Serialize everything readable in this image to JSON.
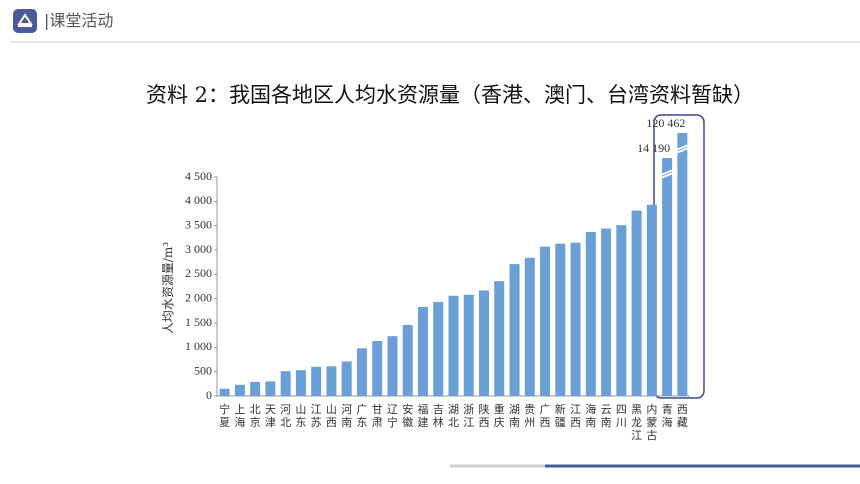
{
  "header": {
    "title": "|课堂活动"
  },
  "chart_data": {
    "type": "bar",
    "title": "资料 2：我国各地区人均水资源量（香港、澳门、台湾资料暂缺）",
    "ylabel": "人均水资源量/m³",
    "categories": [
      "宁夏",
      "上海",
      "北京",
      "天津",
      "河北",
      "山东",
      "江苏",
      "山西",
      "河南",
      "广东",
      "甘肃",
      "辽宁",
      "安徽",
      "福建",
      "吉林",
      "湖北",
      "浙江",
      "陕西",
      "重庆",
      "湖南",
      "贵州",
      "广西",
      "新疆",
      "江西",
      "海南",
      "云南",
      "四川",
      "黑龙江",
      "内蒙古",
      "青海",
      "西藏"
    ],
    "values": [
      150,
      230,
      290,
      300,
      510,
      530,
      600,
      610,
      710,
      980,
      1130,
      1230,
      1460,
      1830,
      1930,
      2060,
      2080,
      2170,
      2360,
      2710,
      2840,
      3070,
      3130,
      3150,
      3370,
      3440,
      3510,
      3810,
      3930,
      14190,
      120462
    ],
    "value_labels": [
      null,
      null,
      null,
      null,
      null,
      null,
      null,
      null,
      null,
      null,
      null,
      null,
      null,
      null,
      null,
      null,
      null,
      null,
      null,
      null,
      null,
      null,
      null,
      null,
      null,
      null,
      null,
      null,
      null,
      "14 190",
      "120 462"
    ],
    "color": "#6a9fd8",
    "axis_break": true,
    "ylim": [
      0,
      4500
    ],
    "yticks": [
      0,
      500,
      {
        "value": 1000,
        "label": "1 000"
      },
      {
        "value": 1500,
        "label": "1 500"
      },
      {
        "value": 2000,
        "label": "2 000"
      },
      {
        "value": 2500,
        "label": "2 500"
      },
      {
        "value": 3000,
        "label": "3 000"
      },
      {
        "value": 3500,
        "label": "3 500"
      },
      {
        "value": 4000,
        "label": "4 000"
      },
      {
        "value": 4500,
        "label": "4 500"
      }
    ]
  }
}
